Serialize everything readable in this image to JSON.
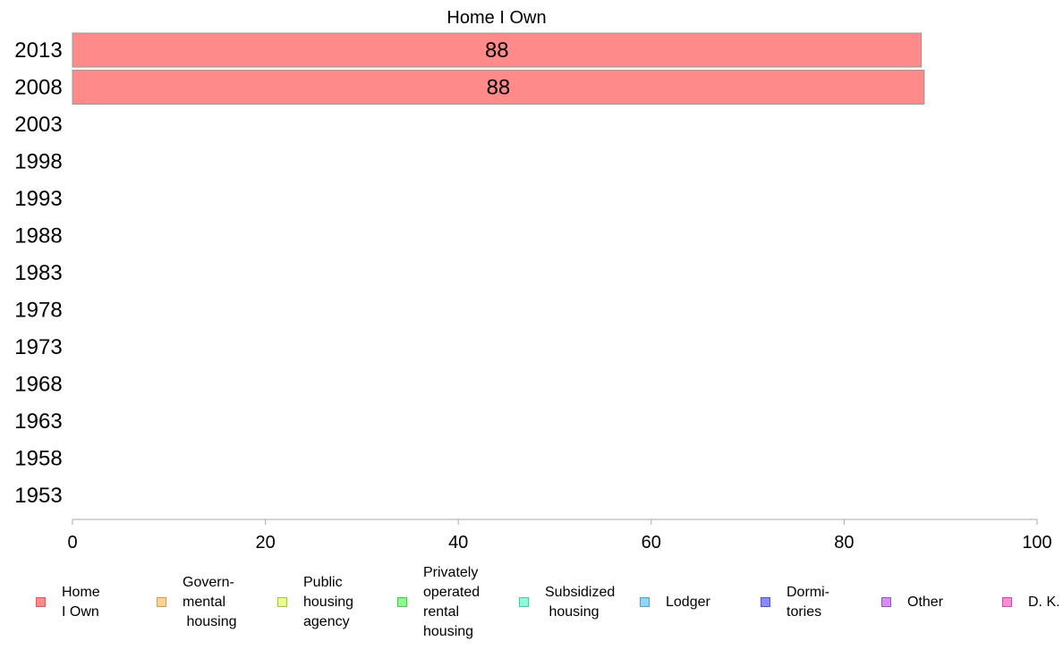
{
  "chart_data": {
    "type": "bar",
    "orientation": "horizontal",
    "title": "Home I Own",
    "xlabel": "",
    "ylabel": "",
    "categories": [
      "2013",
      "2008",
      "2003",
      "1998",
      "1993",
      "1988",
      "1983",
      "1978",
      "1973",
      "1968",
      "1963",
      "1958",
      "1953"
    ],
    "series": [
      {
        "name": "Home\nI Own",
        "values": [
          88,
          88.3,
          null,
          null,
          null,
          null,
          null,
          null,
          null,
          null,
          null,
          null,
          null
        ],
        "labels": [
          "88",
          "88",
          "",
          "",
          "",
          "",
          "",
          "",
          "",
          "",
          "",
          "",
          ""
        ]
      }
    ],
    "xlim": [
      0,
      100
    ],
    "xticks": [
      0,
      20,
      40,
      60,
      80,
      100
    ],
    "grid": false,
    "legend_placement": "bottom",
    "bar_color": "#ff8a8a",
    "bar_border": "#999999"
  },
  "legend": [
    {
      "label": "Home\nI Own",
      "color": "#ff8a8a",
      "border": "#d65f5f"
    },
    {
      "label": "Govern-\nmental\n housing",
      "color": "#ffd38a",
      "border": "#cc9f55"
    },
    {
      "label": "Public\nhousing\nagency",
      "color": "#e7ff8a",
      "border": "#a9bf55"
    },
    {
      "label": "Privately\noperated\nrental\nhousing",
      "color": "#8aff8a",
      "border": "#55bf55"
    },
    {
      "label": "Subsidized\n housing",
      "color": "#8affd8",
      "border": "#55bf9f"
    },
    {
      "label": "Lodger",
      "color": "#8ad8ff",
      "border": "#559fbf"
    },
    {
      "label": "Dormi-\ntories",
      "color": "#8a8aff",
      "border": "#5555bf"
    },
    {
      "label": "Other",
      "color": "#d88aff",
      "border": "#9f55bf"
    },
    {
      "label": "D. K.",
      "color": "#ff8ad8",
      "border": "#bf559f"
    }
  ]
}
